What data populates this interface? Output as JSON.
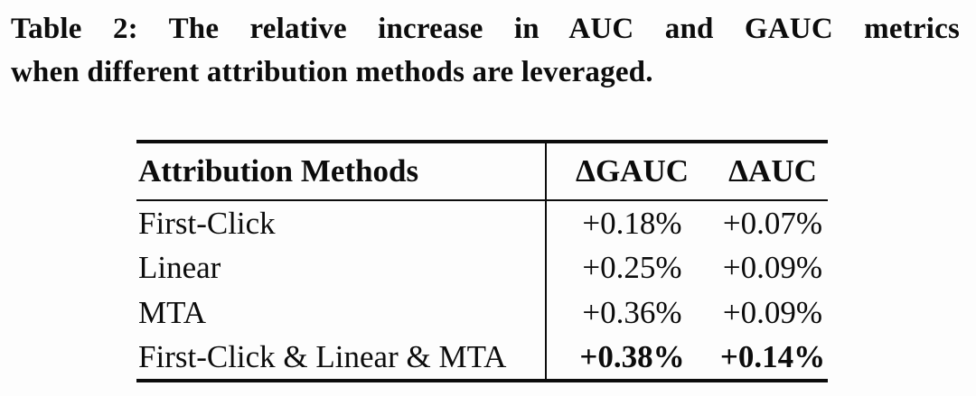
{
  "caption": {
    "line1": "Table 2: The relative increase in AUC and GAUC metrics",
    "line2": "when different attribution methods are leveraged."
  },
  "table": {
    "columns": {
      "method": "Attribution Methods",
      "gauc": "ΔGAUC",
      "auc": "ΔAUC"
    },
    "rows": [
      {
        "method": "First-Click",
        "gauc": "+0.18%",
        "auc": "+0.07%",
        "emphasized": false
      },
      {
        "method": "Linear",
        "gauc": "+0.25%",
        "auc": "+0.09%",
        "emphasized": false
      },
      {
        "method": "MTA",
        "gauc": "+0.36%",
        "auc": "+0.09%",
        "emphasized": false
      },
      {
        "method": "First-Click & Linear & MTA",
        "gauc": "+0.38%",
        "auc": "+0.14%",
        "emphasized": true
      }
    ]
  },
  "colors": {
    "background": "#fdfdfd",
    "text": "#0c0c0c",
    "rule": "#0c0c0c"
  }
}
